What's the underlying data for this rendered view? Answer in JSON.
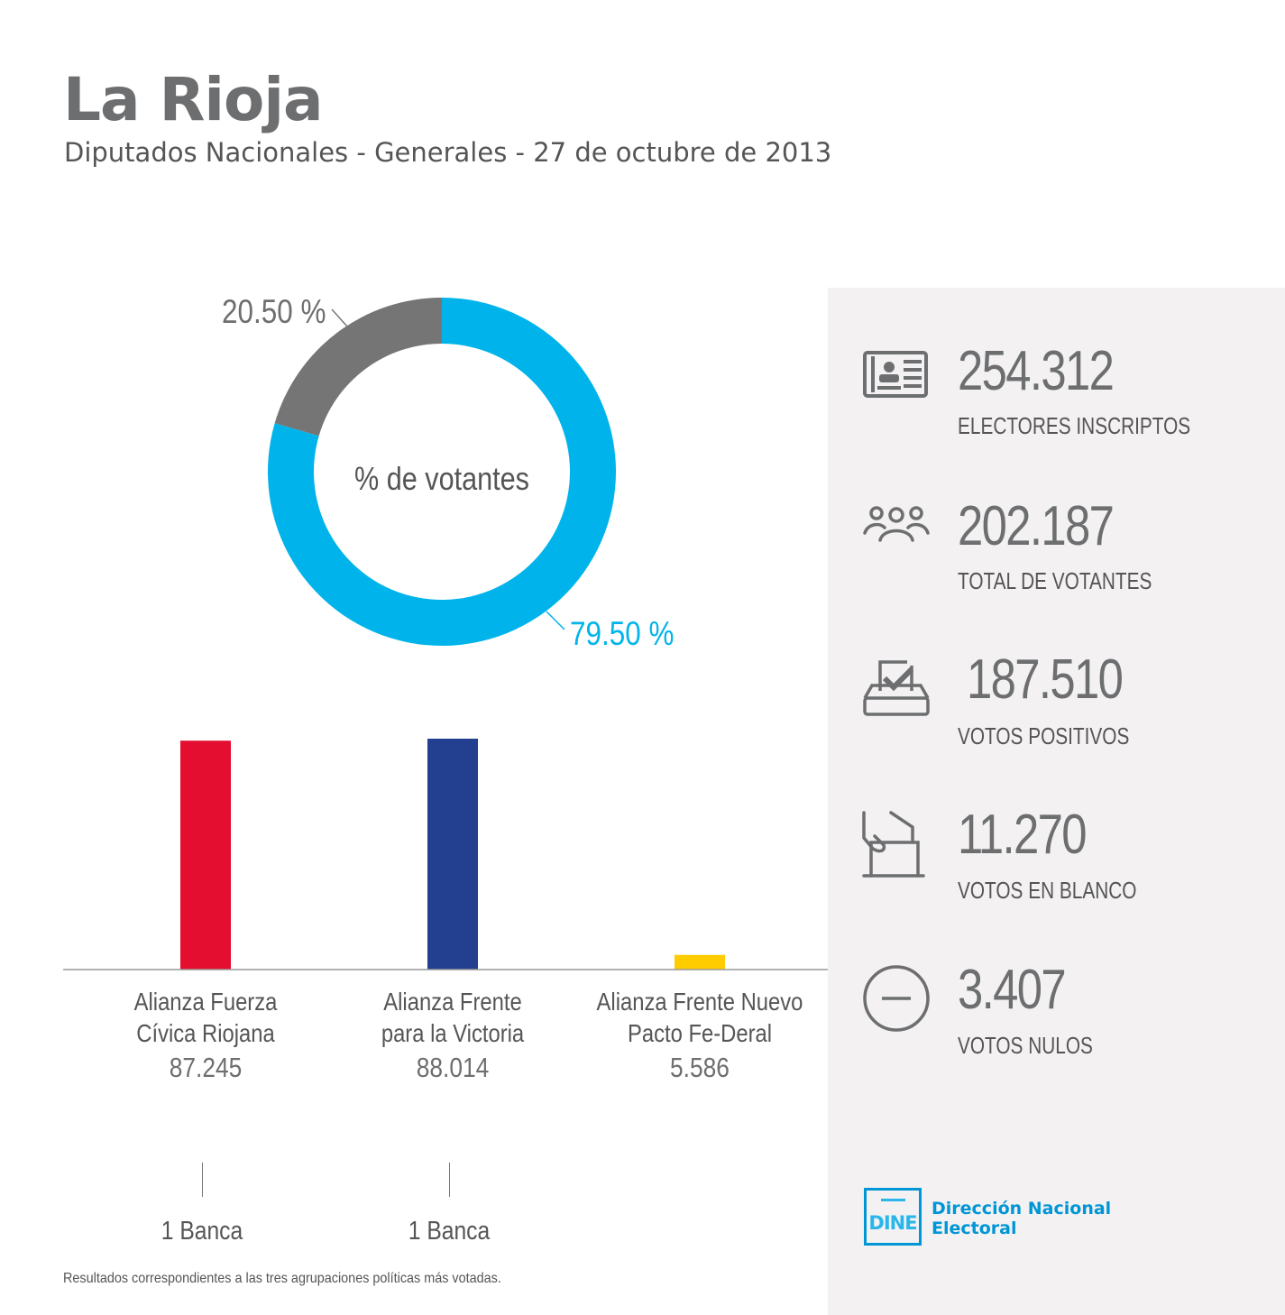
{
  "header": {
    "title": "La Rioja",
    "subtitle": "Diputados Nacionales - Generales - 27 de octubre de 2013"
  },
  "chart_data": [
    {
      "type": "pie",
      "subtype": "donut",
      "center_label": "% de votantes",
      "slices": [
        {
          "value": 79.5,
          "label": "79.50 %",
          "color": "#00b4eb"
        },
        {
          "value": 20.5,
          "label": "20.50 %",
          "color": "#767576"
        }
      ]
    },
    {
      "type": "bar",
      "categories": [
        "Alianza Fuerza Cívica Riojana",
        "Alianza Frente para la Victoria",
        "Alianza Frente Nuevo Pacto Fe-Deral"
      ],
      "category_lines": [
        [
          "Alianza Fuerza",
          "Cívica Riojana"
        ],
        [
          "Alianza Frente",
          "para la Victoria"
        ],
        [
          "Alianza Frente Nuevo",
          "Pacto Fe-Deral"
        ]
      ],
      "values": [
        87245,
        88014,
        5586
      ],
      "value_labels": [
        "87.245",
        "88.014",
        "5.586"
      ],
      "colors": [
        "#e30e30",
        "#233f8f",
        "#ffcc00"
      ],
      "seats": [
        "1 Banca",
        "1 Banca",
        ""
      ],
      "ylim": [
        0,
        88014
      ],
      "grid": false
    }
  ],
  "stats": [
    {
      "value": "254.312",
      "label": "ELECTORES INSCRIPTOS",
      "icon": "id-card-icon"
    },
    {
      "value": "202.187",
      "label": "TOTAL DE VOTANTES",
      "icon": "people-icon"
    },
    {
      "value": "187.510",
      "label": "VOTOS POSITIVOS",
      "icon": "ballot-box-check-icon"
    },
    {
      "value": "11.270",
      "label": "VOTOS EN BLANCO",
      "icon": "hand-ballot-icon"
    },
    {
      "value": "3.407",
      "label": "VOTOS NULOS",
      "icon": "minus-circle-icon"
    }
  ],
  "logo": {
    "mark": "DINE",
    "name_line1": "Dirección Nacional",
    "name_line2": "Electoral",
    "color": "#0096d6"
  },
  "footnote": "Resultados correspondientes a las tres agrupaciones políticas más votadas."
}
